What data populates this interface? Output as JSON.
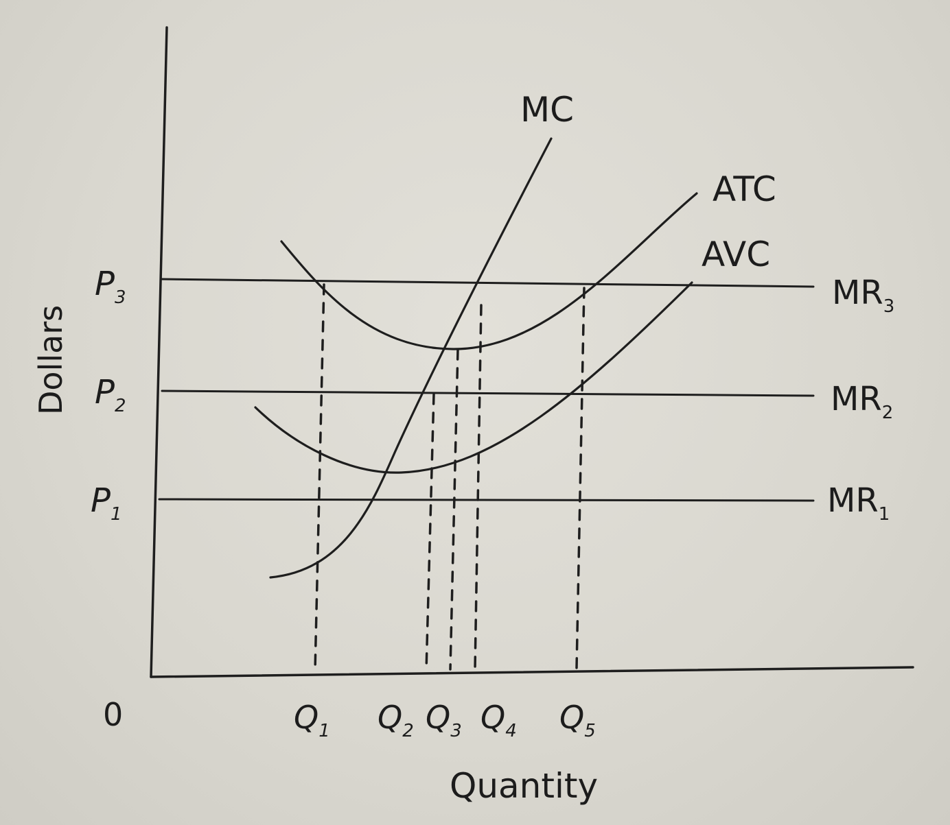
{
  "diagram": {
    "axes": {
      "y_label": "Dollars",
      "x_label": "Quantity",
      "origin_label": "0"
    },
    "curves": {
      "mc": "MC",
      "atc": "ATC",
      "avc": "AVC"
    },
    "revenue_lines": [
      {
        "base": "MR",
        "sub": "3"
      },
      {
        "base": "MR",
        "sub": "2"
      },
      {
        "base": "MR",
        "sub": "1"
      }
    ],
    "price_labels": [
      {
        "base": "P",
        "sub": "3"
      },
      {
        "base": "P",
        "sub": "2"
      },
      {
        "base": "P",
        "sub": "1"
      }
    ],
    "quantity_labels": [
      {
        "base": "Q",
        "sub": "1"
      },
      {
        "base": "Q",
        "sub": "2"
      },
      {
        "base": "Q",
        "sub": "3"
      },
      {
        "base": "Q",
        "sub": "4"
      },
      {
        "base": "Q",
        "sub": "5"
      }
    ]
  }
}
